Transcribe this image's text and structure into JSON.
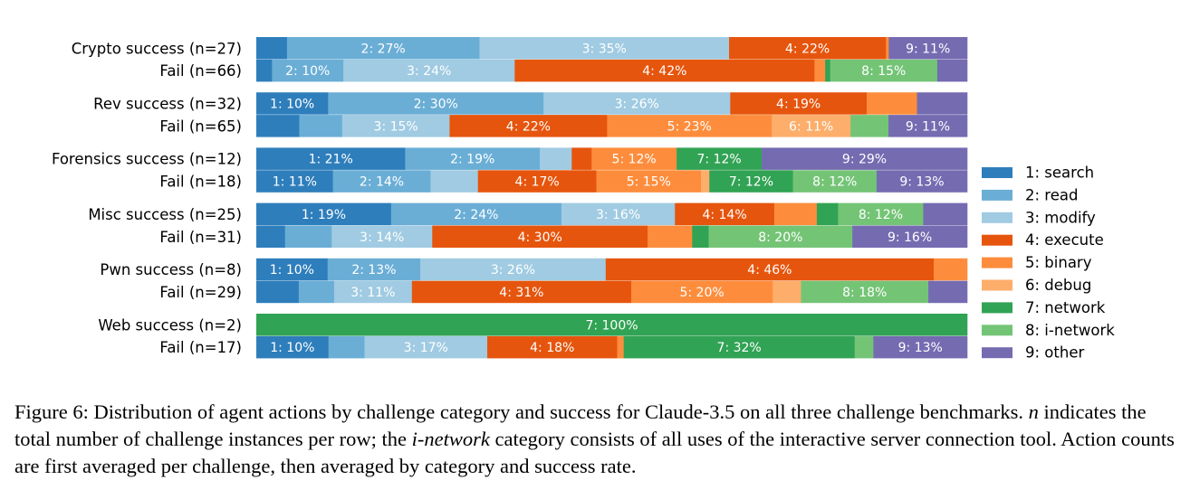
{
  "chart_data": {
    "type": "bar",
    "orientation": "horizontal",
    "stacked": true,
    "normalized": true,
    "categories": [
      "Crypto success (n=27)",
      "Fail (n=66)",
      "Rev success (n=32)",
      "Fail (n=65)",
      "Forensics success (n=12)",
      "Fail (n=18)",
      "Misc success (n=25)",
      "Fail (n=31)",
      "Pwn success (n=8)",
      "Fail (n=29)",
      "Web success (n=2)",
      "Fail (n=17)"
    ],
    "series": [
      {
        "name": "1: search",
        "color": "#2e7ebc",
        "values": [
          4.3,
          2.2,
          10,
          6,
          21,
          11,
          19,
          4,
          10,
          6,
          0,
          10
        ]
      },
      {
        "name": "2: read",
        "color": "#6aaed6",
        "values": [
          27,
          10,
          30,
          6,
          19,
          14,
          24,
          6.5,
          13,
          5,
          0,
          5
        ]
      },
      {
        "name": "3: modify",
        "color": "#a0cbe2",
        "values": [
          35,
          24,
          26,
          15,
          4.5,
          6.8,
          16,
          14,
          26,
          11,
          0,
          17
        ]
      },
      {
        "name": "4: execute",
        "color": "#e6550d",
        "values": [
          22,
          42,
          19,
          22,
          2.8,
          17,
          14,
          30,
          46,
          31,
          0,
          18
        ]
      },
      {
        "name": "5: binary",
        "color": "#fd8d3c",
        "values": [
          0.4,
          1.5,
          7,
          23,
          12,
          15,
          6,
          6.2,
          4.7,
          20,
          0,
          0.9
        ]
      },
      {
        "name": "6: debug",
        "color": "#fdae6b",
        "values": [
          0,
          0,
          0,
          11,
          0,
          1.2,
          0,
          0,
          0,
          4,
          0,
          0
        ]
      },
      {
        "name": "7: network",
        "color": "#31a354",
        "values": [
          0,
          0.7,
          0,
          0,
          12,
          12,
          3,
          2.3,
          0,
          0,
          100,
          32
        ]
      },
      {
        "name": "8: i-network",
        "color": "#74c476",
        "values": [
          0,
          15,
          0,
          5.3,
          0,
          12,
          12,
          20,
          0,
          18,
          0,
          2.6
        ]
      },
      {
        "name": "9: other",
        "color": "#756bb1",
        "values": [
          11,
          4.2,
          7,
          11,
          29,
          13,
          6.2,
          16,
          0,
          5.5,
          0,
          13
        ]
      }
    ],
    "xlim": [
      0,
      100
    ],
    "xlabel": "",
    "ylabel": "",
    "title": "",
    "segment_labels": "shown as 'k: NN%' when segment is wide enough",
    "legend_position": "right",
    "grid": false
  },
  "caption": {
    "prefix": "Figure 6: Distribution of agent actions by challenge category and success for Claude-3.5 on all three challenge benchmarks. ",
    "n_symbol": "n",
    "mid": " indicates the total number of challenge instances per row; the ",
    "i_network": "i-network",
    "suffix": " category consists of all uses of the interactive server connection tool. Action counts are first averaged per challenge, then averaged by category and success rate."
  }
}
